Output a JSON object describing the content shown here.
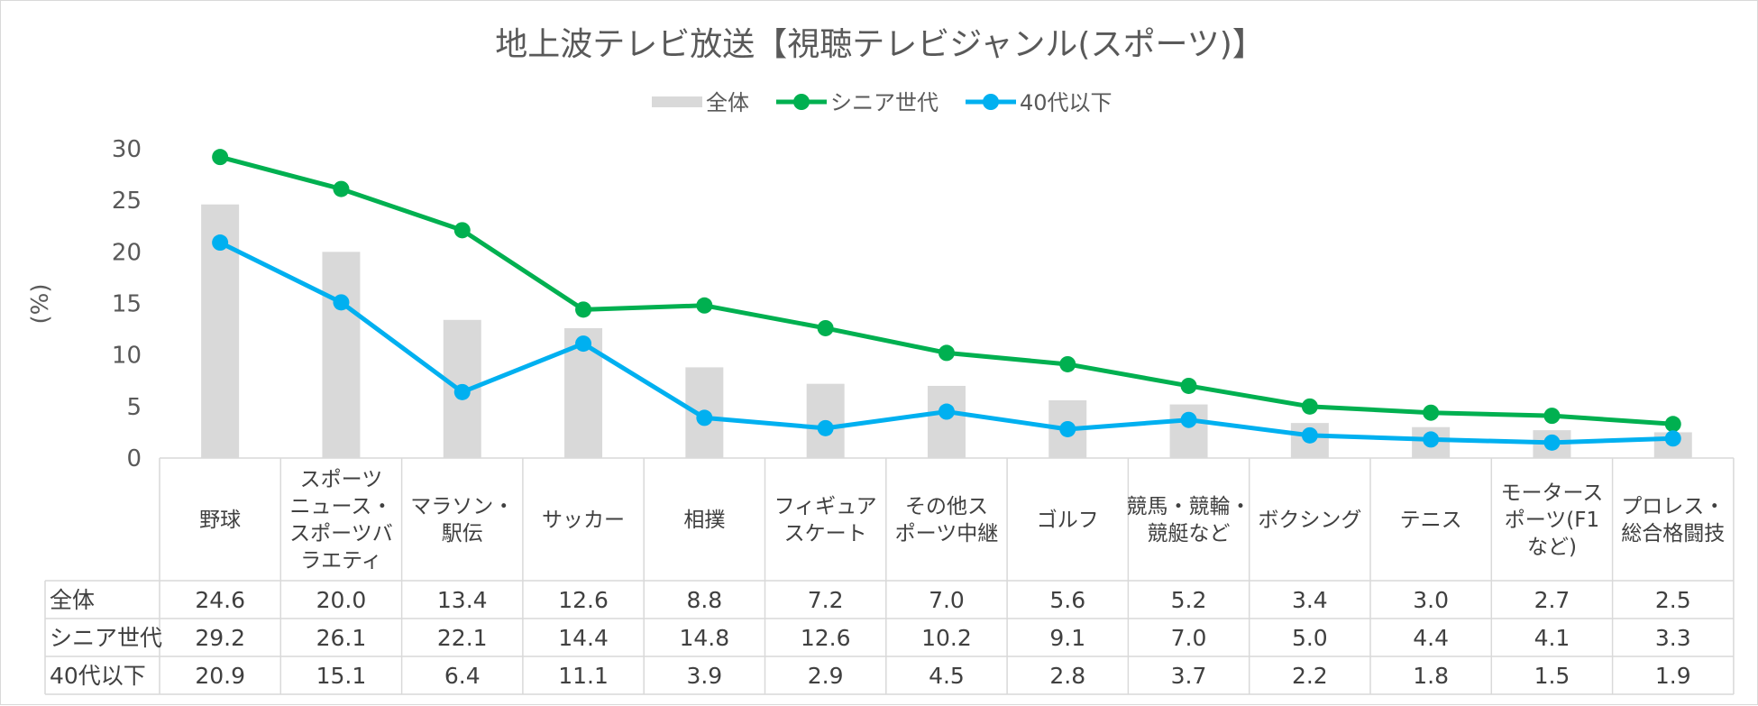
{
  "chart_data": {
    "type": "bar",
    "title": "地上波テレビ放送【視聴テレビジャンル(スポーツ)】",
    "ylabel": "(%)",
    "ylim": [
      0,
      30
    ],
    "yticks": [
      0,
      5,
      10,
      15,
      20,
      25,
      30
    ],
    "grid": false,
    "legend_position": "top-center",
    "categories": [
      [
        "野球"
      ],
      [
        "スポーツ",
        "ニュース・",
        "スポーツバ",
        "ラエティ"
      ],
      [
        "マラソン・",
        "駅伝"
      ],
      [
        "サッカー"
      ],
      [
        "相撲"
      ],
      [
        "フィギュア",
        "スケート"
      ],
      [
        "その他ス",
        "ポーツ中継"
      ],
      [
        "ゴルフ"
      ],
      [
        "競馬・競輪・",
        "競艇など"
      ],
      [
        "ボクシング"
      ],
      [
        "テニス"
      ],
      [
        "モータース",
        "ポーツ(F1",
        "など)"
      ],
      [
        "プロレス・",
        "総合格闘技"
      ]
    ],
    "series": [
      {
        "name": "全体",
        "kind": "bar",
        "color": "#d9d9d9",
        "values": [
          24.6,
          20.0,
          13.4,
          12.6,
          8.8,
          7.2,
          7.0,
          5.6,
          5.2,
          3.4,
          3.0,
          2.7,
          2.5
        ],
        "labels": [
          "24.6",
          "20.0",
          "13.4",
          "12.6",
          "8.8",
          "7.2",
          "7.0",
          "5.6",
          "5.2",
          "3.4",
          "3.0",
          "2.7",
          "2.5"
        ]
      },
      {
        "name": "シニア世代",
        "kind": "line",
        "color": "#00b050",
        "values": [
          29.2,
          26.1,
          22.1,
          14.4,
          14.8,
          12.6,
          10.2,
          9.1,
          7.0,
          5.0,
          4.4,
          4.1,
          3.3
        ],
        "labels": [
          "29.2",
          "26.1",
          "22.1",
          "14.4",
          "14.8",
          "12.6",
          "10.2",
          "9.1",
          "7.0",
          "5.0",
          "4.4",
          "4.1",
          "3.3"
        ]
      },
      {
        "name": "40代以下",
        "kind": "line",
        "color": "#00b0f0",
        "values": [
          20.9,
          15.1,
          6.4,
          11.1,
          3.9,
          2.9,
          4.5,
          2.8,
          3.7,
          2.2,
          1.8,
          1.5,
          1.9
        ],
        "labels": [
          "20.9",
          "15.1",
          "6.4",
          "11.1",
          "3.9",
          "2.9",
          "4.5",
          "2.8",
          "3.7",
          "2.2",
          "1.8",
          "1.5",
          "1.9"
        ]
      }
    ]
  }
}
